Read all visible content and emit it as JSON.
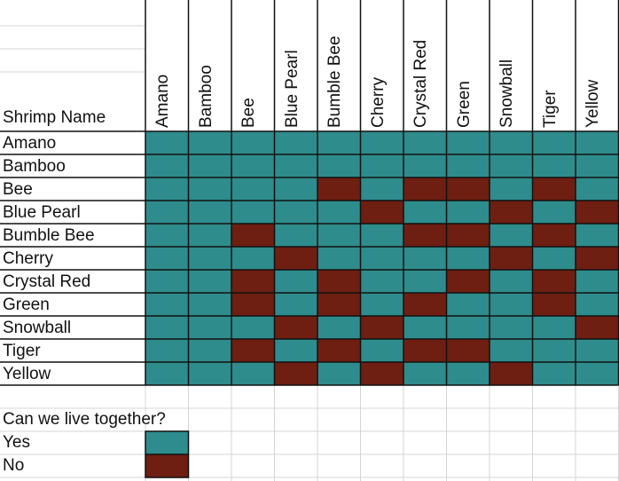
{
  "chart_data": {
    "type": "heatmap",
    "title": "",
    "corner_label": "Shrimp Name",
    "rows": [
      "Amano",
      "Bamboo",
      "Bee",
      "Blue Pearl",
      "Bumble Bee",
      "Cherry",
      "Crystal Red",
      "Green",
      "Snowball",
      "Tiger",
      "Yellow"
    ],
    "columns": [
      "Amano",
      "Bamboo",
      "Bee",
      "Blue Pearl",
      "Bumble Bee",
      "Cherry",
      "Crystal Red",
      "Green",
      "Snowball",
      "Tiger",
      "Yellow"
    ],
    "value_legend": {
      "1": "Yes",
      "0": "No"
    },
    "values": [
      [
        1,
        1,
        1,
        1,
        1,
        1,
        1,
        1,
        1,
        1,
        1
      ],
      [
        1,
        1,
        1,
        1,
        1,
        1,
        1,
        1,
        1,
        1,
        1
      ],
      [
        1,
        1,
        1,
        1,
        0,
        1,
        0,
        0,
        1,
        0,
        1
      ],
      [
        1,
        1,
        1,
        1,
        1,
        0,
        1,
        1,
        0,
        1,
        0
      ],
      [
        1,
        1,
        0,
        1,
        1,
        1,
        0,
        0,
        1,
        0,
        1
      ],
      [
        1,
        1,
        1,
        0,
        1,
        1,
        1,
        1,
        0,
        1,
        0
      ],
      [
        1,
        1,
        0,
        1,
        0,
        1,
        1,
        0,
        1,
        0,
        1
      ],
      [
        1,
        1,
        0,
        1,
        0,
        1,
        0,
        1,
        1,
        0,
        1
      ],
      [
        1,
        1,
        1,
        0,
        1,
        0,
        1,
        1,
        1,
        1,
        0
      ],
      [
        1,
        1,
        0,
        1,
        0,
        1,
        0,
        0,
        1,
        1,
        1
      ],
      [
        1,
        1,
        1,
        0,
        1,
        0,
        1,
        1,
        0,
        1,
        1
      ]
    ]
  },
  "legend": {
    "question": "Can we live together?",
    "yes_label": "Yes",
    "no_label": "No"
  },
  "colors": {
    "yes": "#2f8c8c",
    "no": "#6e1f12",
    "grid": "#111111",
    "light_grid": "#d4d4d4"
  }
}
